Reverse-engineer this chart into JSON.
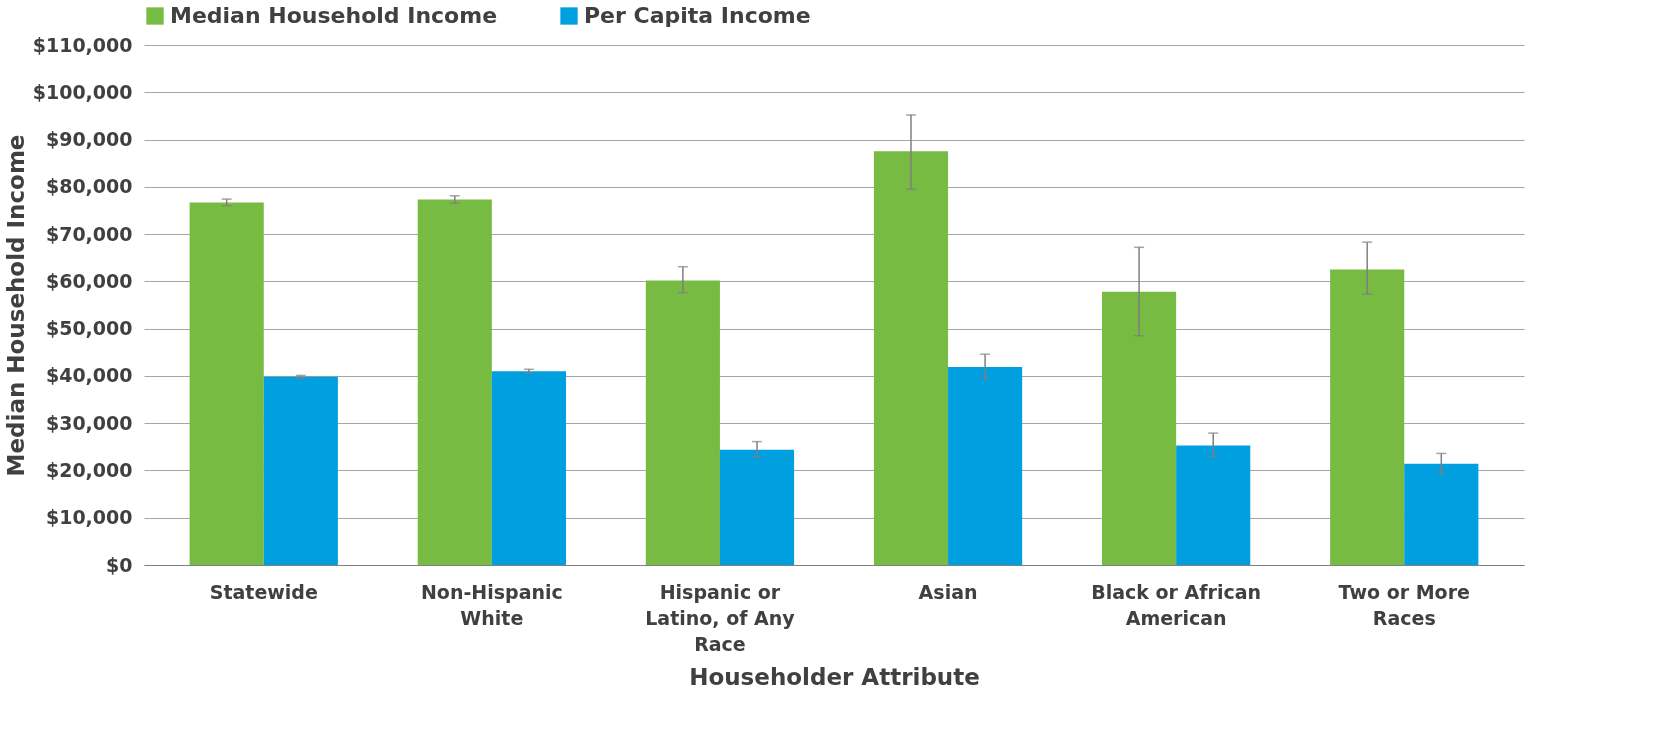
{
  "chart_data": {
    "type": "bar",
    "xlabel": "Householder Attribute",
    "ylabel": "Median Household Income",
    "categories": [
      "Statewide",
      "Non-Hispanic White",
      "Hispanic or Latino, of Any Race",
      "Asian",
      "Black or African American",
      "Two or More Races"
    ],
    "series": [
      {
        "name": "Median Household Income",
        "color": "#77bb43",
        "values": [
          76700,
          77300,
          60200,
          87500,
          57800,
          62500
        ],
        "errors": [
          700,
          800,
          [
            57600,
            63100
          ],
          [
            79500,
            95200
          ],
          [
            48500,
            67200
          ],
          [
            57300,
            68300
          ]
        ]
      },
      {
        "name": "Per Capita Income",
        "color": "#009fdf",
        "values": [
          39800,
          41000,
          24400,
          41900,
          25300,
          21400
        ],
        "errors": [
          300,
          400,
          [
            22900,
            26100
          ],
          [
            39500,
            44600
          ],
          [
            22900,
            27900
          ],
          [
            19300,
            23600
          ]
        ]
      }
    ],
    "ylim": [
      0,
      110000
    ],
    "yticks": [
      {
        "value": 0,
        "label": "$0"
      },
      {
        "value": 10000,
        "label": "$10,000"
      },
      {
        "value": 20000,
        "label": "$20,000"
      },
      {
        "value": 30000,
        "label": "$30,000"
      },
      {
        "value": 40000,
        "label": "$40,000"
      },
      {
        "value": 50000,
        "label": "$50,000"
      },
      {
        "value": 60000,
        "label": "$60,000"
      },
      {
        "value": 70000,
        "label": "$70,000"
      },
      {
        "value": 80000,
        "label": "$80,000"
      },
      {
        "value": 90000,
        "label": "$90,000"
      },
      {
        "value": 100000,
        "label": "$100,000"
      },
      {
        "value": 110000,
        "label": "$110,000"
      }
    ],
    "grid": "y",
    "legend": "top"
  }
}
